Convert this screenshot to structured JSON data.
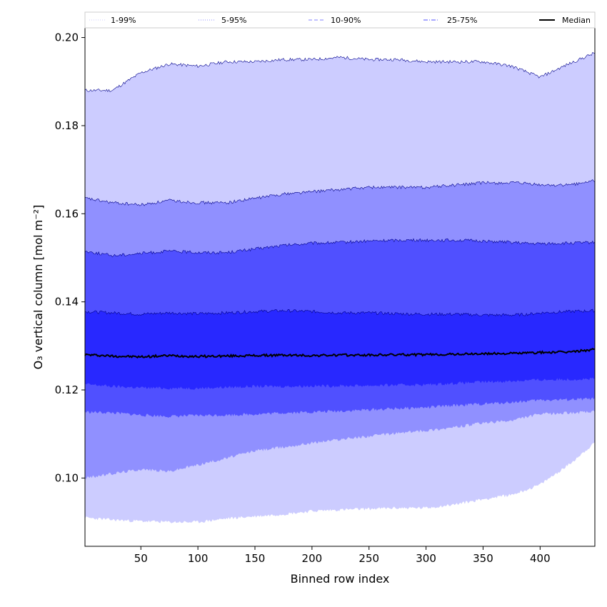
{
  "chart_data": {
    "type": "area",
    "title": "",
    "xlabel": "Binned row index",
    "ylabel": "O₃ vertical column [mol m⁻²]",
    "xlim": [
      1,
      448
    ],
    "ylim": [
      0.0845,
      0.2022
    ],
    "xticks": [
      50,
      100,
      150,
      200,
      250,
      300,
      350,
      400
    ],
    "yticks": [
      0.1,
      0.12,
      0.14,
      0.16,
      0.18,
      0.2
    ],
    "ytick_labels": [
      "0.10",
      "0.12",
      "0.14",
      "0.16",
      "0.18",
      "0.20"
    ],
    "grid": false,
    "legend_position": "top (above plot, single row)",
    "x": [
      1,
      25,
      50,
      75,
      100,
      125,
      150,
      175,
      200,
      225,
      250,
      275,
      300,
      325,
      350,
      375,
      390,
      400,
      425,
      448
    ],
    "bands": [
      {
        "name": "1-99%",
        "fill_color": "#ccccff",
        "line_color": "#ccccff",
        "lower": [
          0.091,
          0.0905,
          0.0902,
          0.09,
          0.09,
          0.0908,
          0.0913,
          0.0918,
          0.0925,
          0.0928,
          0.093,
          0.0932,
          0.0932,
          0.094,
          0.0952,
          0.0962,
          0.0975,
          0.0985,
          0.103,
          0.108
        ],
        "upper": [
          0.188,
          0.188,
          0.192,
          0.194,
          0.1935,
          0.1945,
          0.1945,
          0.195,
          0.195,
          0.1955,
          0.195,
          0.195,
          0.1945,
          0.1945,
          0.1945,
          0.1935,
          0.192,
          0.191,
          0.194,
          0.1965
        ]
      },
      {
        "name": "5-95%",
        "fill_color": "#9090ff",
        "line_color": "#9090ff",
        "lower": [
          0.1,
          0.101,
          0.102,
          0.1015,
          0.103,
          0.1045,
          0.1062,
          0.107,
          0.108,
          0.1088,
          0.1095,
          0.1102,
          0.1108,
          0.1115,
          0.1125,
          0.113,
          0.114,
          0.1145,
          0.1148,
          0.115
        ],
        "upper": [
          0.1635,
          0.1625,
          0.162,
          0.163,
          0.1625,
          0.1625,
          0.1635,
          0.1645,
          0.165,
          0.1655,
          0.166,
          0.166,
          0.166,
          0.1665,
          0.167,
          0.167,
          0.1668,
          0.1665,
          0.1665,
          0.1675
        ]
      },
      {
        "name": "10-90%",
        "fill_color": "#5050ff",
        "line_color": "#5050ff",
        "lower": [
          0.115,
          0.1148,
          0.1143,
          0.114,
          0.1142,
          0.1143,
          0.1145,
          0.1148,
          0.115,
          0.1152,
          0.1155,
          0.1158,
          0.116,
          0.1165,
          0.1168,
          0.1172,
          0.1175,
          0.1177,
          0.1178,
          0.118
        ],
        "upper": [
          0.1515,
          0.1505,
          0.151,
          0.1515,
          0.1512,
          0.1512,
          0.152,
          0.1528,
          0.1533,
          0.1535,
          0.1538,
          0.154,
          0.154,
          0.154,
          0.1538,
          0.1535,
          0.1532,
          0.1532,
          0.1533,
          0.1535
        ]
      },
      {
        "name": "25-75%",
        "fill_color": "#2828ff",
        "line_color": "#5050ff",
        "lower": [
          0.1213,
          0.1208,
          0.1205,
          0.1204,
          0.1204,
          0.1206,
          0.1208,
          0.1208,
          0.1209,
          0.1209,
          0.121,
          0.1211,
          0.1212,
          0.1215,
          0.1218,
          0.122,
          0.1222,
          0.1223,
          0.1224,
          0.1225
        ],
        "upper": [
          0.1378,
          0.1375,
          0.1372,
          0.1375,
          0.1373,
          0.1375,
          0.1378,
          0.138,
          0.1378,
          0.1375,
          0.1375,
          0.1373,
          0.1372,
          0.1372,
          0.137,
          0.137,
          0.1372,
          0.1375,
          0.1378,
          0.138
        ]
      }
    ],
    "median": {
      "name": "Median",
      "color": "#000000",
      "values": [
        0.128,
        0.1277,
        0.1275,
        0.1278,
        0.1276,
        0.1277,
        0.1278,
        0.1279,
        0.1278,
        0.1279,
        0.1279,
        0.128,
        0.128,
        0.1281,
        0.1282,
        0.1283,
        0.1284,
        0.1285,
        0.1286,
        0.1292
      ]
    },
    "legend": [
      {
        "label": "1-99%",
        "color": "#ccccff",
        "style": "dotted"
      },
      {
        "label": "5-95%",
        "color": "#9090ff",
        "style": "dotted"
      },
      {
        "label": "10-90%",
        "color": "#8080ff",
        "style": "dashed"
      },
      {
        "label": "25-75%",
        "color": "#5050ff",
        "style": "dashdot"
      },
      {
        "label": "Median",
        "color": "#000000",
        "style": "solid"
      }
    ]
  }
}
